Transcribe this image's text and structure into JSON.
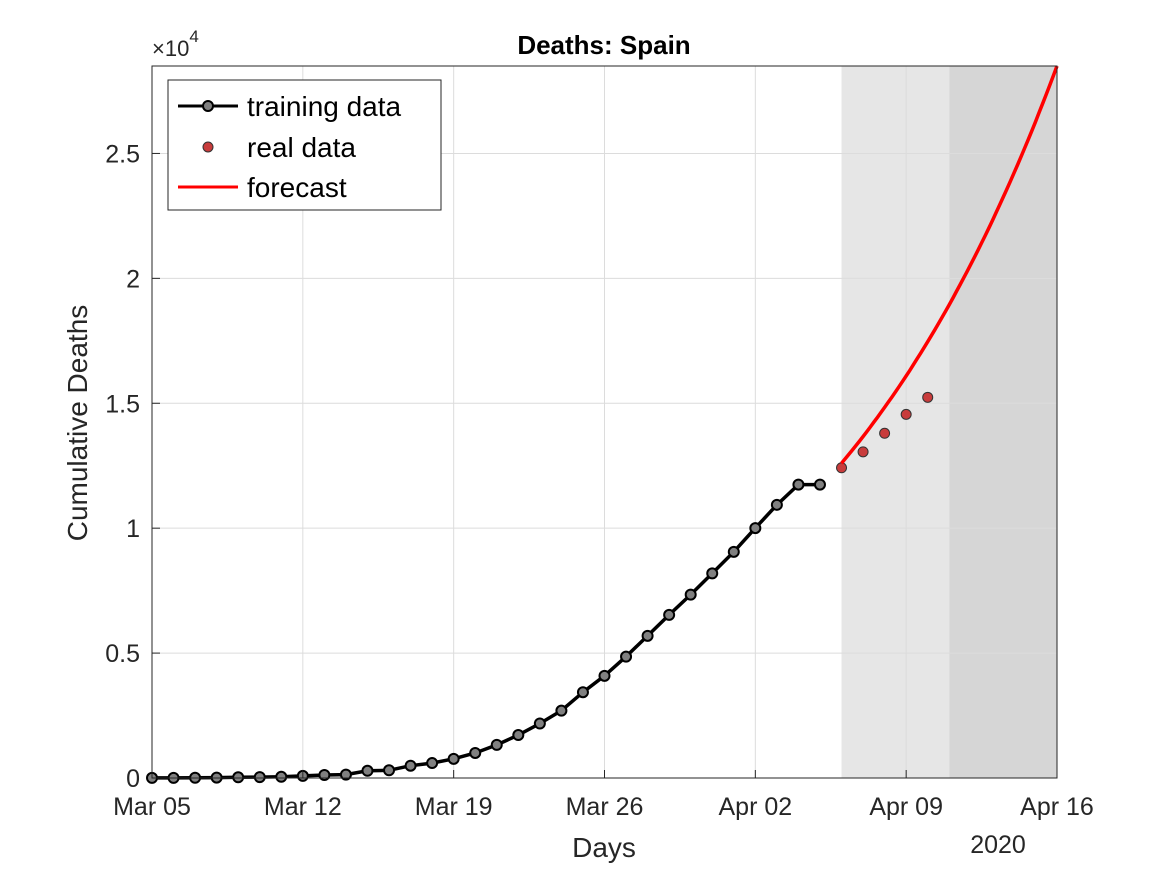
{
  "chart_data": {
    "type": "line",
    "title": "Deaths: Spain",
    "xlabel": "Days",
    "ylabel": "Cumulative Deaths",
    "year_label": "2020",
    "exponent_label": {
      "base": "×10",
      "power": "4"
    },
    "y_scale_factor": 10000,
    "xlim": [
      "2020-03-05",
      "2020-04-16"
    ],
    "ylim": [
      0,
      2.85
    ],
    "x_ticks": [
      {
        "date": "2020-03-05",
        "label": "Mar 05"
      },
      {
        "date": "2020-03-12",
        "label": "Mar 12"
      },
      {
        "date": "2020-03-19",
        "label": "Mar 19"
      },
      {
        "date": "2020-03-26",
        "label": "Mar 26"
      },
      {
        "date": "2020-04-02",
        "label": "Apr 02"
      },
      {
        "date": "2020-04-09",
        "label": "Apr 09"
      },
      {
        "date": "2020-04-16",
        "label": "Apr 16"
      }
    ],
    "y_ticks": [
      {
        "value": 0,
        "label": "0"
      },
      {
        "value": 0.5,
        "label": "0.5"
      },
      {
        "value": 1,
        "label": "1"
      },
      {
        "value": 1.5,
        "label": "1.5"
      },
      {
        "value": 2,
        "label": "2"
      },
      {
        "value": 2.5,
        "label": "2.5"
      }
    ],
    "grid": true,
    "legend_position": "top-left",
    "shaded_regions": [
      {
        "start": "2020-04-06",
        "end": "2020-04-11",
        "color": "#e6e6e6"
      },
      {
        "start": "2020-04-11",
        "end": "2020-04-16",
        "color": "#d6d6d6"
      }
    ],
    "series": [
      {
        "name": "training data",
        "style": "line-markers",
        "color": "#000000",
        "marker_color": "#808080",
        "x": [
          "2020-03-05",
          "2020-03-06",
          "2020-03-07",
          "2020-03-08",
          "2020-03-09",
          "2020-03-10",
          "2020-03-11",
          "2020-03-12",
          "2020-03-13",
          "2020-03-14",
          "2020-03-15",
          "2020-03-16",
          "2020-03-17",
          "2020-03-18",
          "2020-03-19",
          "2020-03-20",
          "2020-03-21",
          "2020-03-22",
          "2020-03-23",
          "2020-03-24",
          "2020-03-25",
          "2020-03-26",
          "2020-03-27",
          "2020-03-28",
          "2020-03-29",
          "2020-03-30",
          "2020-03-31",
          "2020-04-01",
          "2020-04-02",
          "2020-04-03",
          "2020-04-04",
          "2020-04-05"
        ],
        "y": [
          0.0003,
          0.0005,
          0.001,
          0.0017,
          0.0028,
          0.0035,
          0.0048,
          0.0084,
          0.012,
          0.0136,
          0.0288,
          0.0309,
          0.0491,
          0.0598,
          0.0767,
          0.1002,
          0.1326,
          0.172,
          0.2182,
          0.2696,
          0.3434,
          0.4089,
          0.4858,
          0.569,
          0.6528,
          0.734,
          0.8189,
          0.9053,
          1.0003,
          1.0935,
          1.1744,
          1.1744
        ]
      },
      {
        "name": "real data",
        "style": "markers",
        "color": "#c83c3c",
        "x": [
          "2020-04-06",
          "2020-04-07",
          "2020-04-08",
          "2020-04-09",
          "2020-04-10"
        ],
        "y": [
          1.2418,
          1.3055,
          1.3798,
          1.4555,
          1.5238
        ]
      },
      {
        "name": "forecast",
        "style": "line",
        "color": "#ff0000",
        "x": [
          "2020-04-06",
          "2020-04-08",
          "2020-04-10",
          "2020-04-12",
          "2020-04-14",
          "2020-04-16"
        ],
        "y": [
          1.26,
          1.48,
          1.74,
          2.06,
          2.43,
          2.85
        ]
      }
    ]
  }
}
